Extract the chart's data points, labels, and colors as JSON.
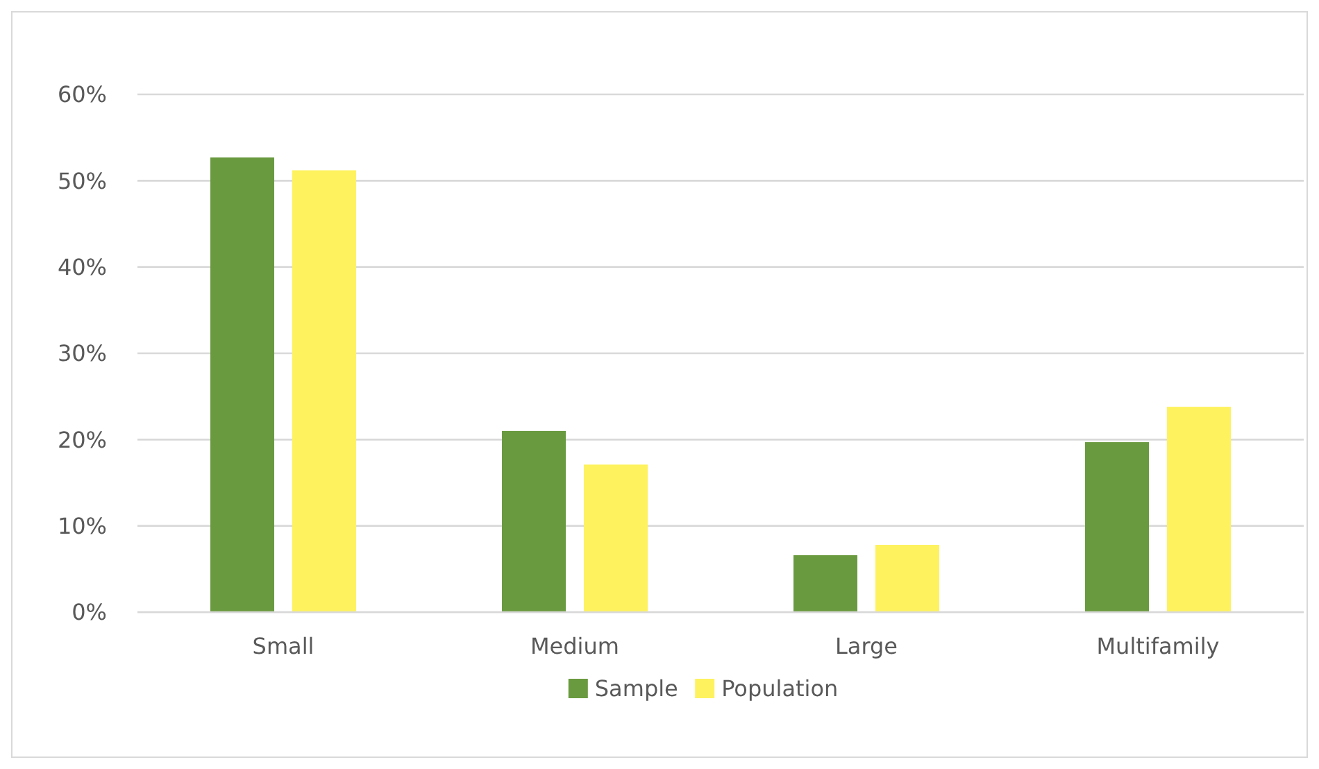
{
  "chart_data": {
    "type": "bar",
    "categories": [
      "Small",
      "Medium",
      "Large",
      "Multifamily"
    ],
    "series": [
      {
        "name": "Sample",
        "color": "#6a9a3f",
        "values": [
          52.7,
          21.0,
          6.6,
          19.7
        ]
      },
      {
        "name": "Population",
        "color": "#fef25f",
        "values": [
          51.2,
          17.1,
          7.8,
          23.8
        ]
      }
    ],
    "ylim": [
      0,
      60
    ],
    "yticks": [
      {
        "value": 0,
        "label": "0%"
      },
      {
        "value": 10,
        "label": "10%"
      },
      {
        "value": 20,
        "label": "20%"
      },
      {
        "value": 30,
        "label": "30%"
      },
      {
        "value": 40,
        "label": "40%"
      },
      {
        "value": 50,
        "label": "50%"
      },
      {
        "value": 60,
        "label": "60%"
      }
    ],
    "grid": "y",
    "legend": "bottom"
  }
}
